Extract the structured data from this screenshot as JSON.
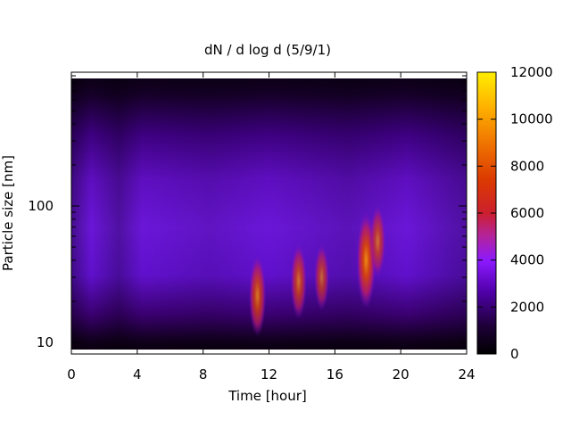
{
  "chart_data": {
    "type": "heatmap",
    "title": "dN / d log d (5/9/1)",
    "xlabel": "Time [hour]",
    "ylabel": "Particle size [nm]",
    "xlim": [
      0,
      24
    ],
    "x_ticks": [
      0,
      4,
      8,
      12,
      16,
      20,
      24
    ],
    "y_scale": "log",
    "y_ticks": [
      10,
      100
    ],
    "colorbar": {
      "range": [
        0,
        12000
      ],
      "ticks": [
        0,
        2000,
        4000,
        6000,
        8000,
        10000,
        12000
      ],
      "colormap": "black-purple-red-orange-yellow"
    },
    "hotspots": [
      {
        "time_hour": 11.3,
        "size_nm": 22,
        "value": 7000
      },
      {
        "time_hour": 13.8,
        "size_nm": 28,
        "value": 6000
      },
      {
        "time_hour": 15.2,
        "size_nm": 30,
        "value": 4500
      },
      {
        "time_hour": 17.9,
        "size_nm": 40,
        "value": 9500
      },
      {
        "time_hour": 18.6,
        "size_nm": 55,
        "value": 5500
      }
    ]
  }
}
